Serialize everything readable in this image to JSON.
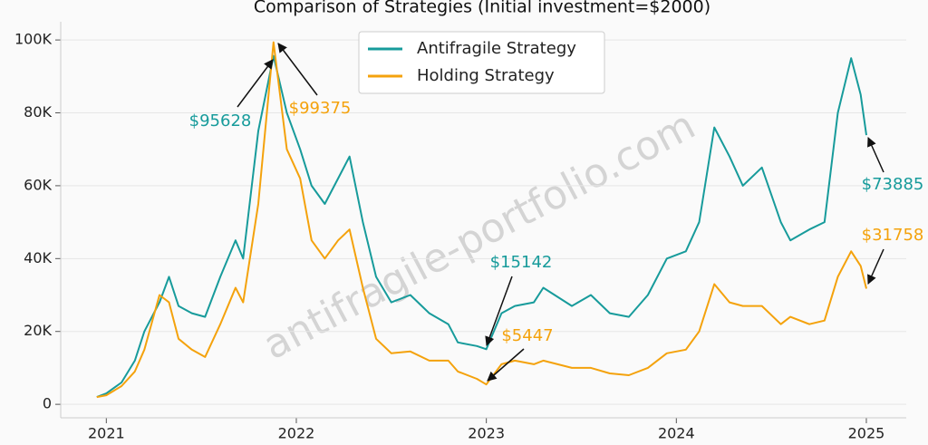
{
  "chart_data": {
    "type": "line",
    "title": "Comparison of Strategies (Initial investment=$2000)",
    "watermark": "antifragile-portfolio.com",
    "x": [
      2020.95,
      2021.0,
      2021.08,
      2021.15,
      2021.2,
      2021.28,
      2021.33,
      2021.38,
      2021.45,
      2021.52,
      2021.6,
      2021.68,
      2021.72,
      2021.8,
      2021.88,
      2021.95,
      2022.02,
      2022.08,
      2022.15,
      2022.22,
      2022.28,
      2022.35,
      2022.42,
      2022.5,
      2022.6,
      2022.7,
      2022.8,
      2022.85,
      2022.95,
      2023.0,
      2023.08,
      2023.15,
      2023.25,
      2023.3,
      2023.45,
      2023.55,
      2023.65,
      2023.75,
      2023.85,
      2023.95,
      2024.05,
      2024.12,
      2024.2,
      2024.28,
      2024.35,
      2024.45,
      2024.55,
      2024.6,
      2024.7,
      2024.78,
      2024.85,
      2024.92,
      2024.97,
      2025.0
    ],
    "series": [
      {
        "name": "Antifragile Strategy",
        "color": "#179b9b",
        "values": [
          2000,
          3000,
          6000,
          12000,
          20000,
          28000,
          35000,
          27000,
          25000,
          24000,
          35000,
          45000,
          40000,
          75000,
          95628,
          80000,
          70000,
          60000,
          55000,
          62000,
          68000,
          50000,
          35000,
          28000,
          30000,
          25000,
          22000,
          17000,
          16000,
          15142,
          25000,
          27000,
          28000,
          32000,
          27000,
          30000,
          25000,
          24000,
          30000,
          40000,
          42000,
          50000,
          76000,
          68000,
          60000,
          65000,
          50000,
          45000,
          48000,
          50000,
          80000,
          95000,
          85000,
          73885
        ],
        "annotations": [
          "$95628",
          "$15142",
          "$73885"
        ]
      },
      {
        "name": "Holding Strategy",
        "color": "#f4a20c",
        "values": [
          2000,
          2500,
          5000,
          9000,
          15000,
          30000,
          28000,
          18000,
          15000,
          13000,
          22000,
          32000,
          28000,
          55000,
          99375,
          70000,
          62000,
          45000,
          40000,
          45000,
          48000,
          32000,
          18000,
          14000,
          14500,
          12000,
          12000,
          9000,
          7000,
          5447,
          11000,
          12000,
          11000,
          12000,
          10000,
          10000,
          8500,
          8000,
          10000,
          14000,
          15000,
          20000,
          33000,
          28000,
          27000,
          27000,
          22000,
          24000,
          22000,
          23000,
          35000,
          42000,
          38000,
          31758
        ],
        "annotations": [
          "$99375",
          "$5447",
          "$31758"
        ]
      }
    ],
    "xlim": [
      2020.76,
      2025.21
    ],
    "xticks": [
      2021,
      2022,
      2023,
      2024,
      2025
    ],
    "ylim": [
      -3700,
      105000
    ],
    "yticks": [
      0,
      {
        "value": 20000,
        "label": "20K"
      },
      {
        "value": 40000,
        "label": "40K"
      },
      {
        "value": 60000,
        "label": "60K"
      },
      {
        "value": 80000,
        "label": "80K"
      },
      {
        "value": 100000,
        "label": "100K"
      }
    ],
    "grid": true,
    "legend": "upper center"
  }
}
